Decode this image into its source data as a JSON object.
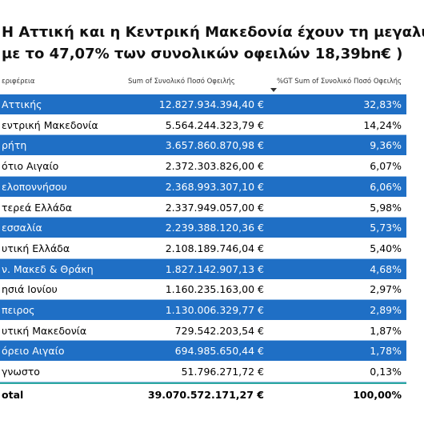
{
  "header": {
    "title_lines": [
      "Η Αττική και η Κεντρική Μακεδονία  έχουν τη μεγαλύτε",
      "με το 47,07% των συνολικών οφειλών 18,39bn€   )"
    ]
  },
  "table": {
    "columns": [
      "εριφέρεια",
      "Sum of Συνολικό Ποσό Οφειλής",
      "%GT Sum of Συνολικό Ποσό Οφειλής"
    ],
    "rows": [
      [
        "Αττικής",
        "12.827.934.394,40 €",
        "32,83%"
      ],
      [
        "εντρική Μακεδονία",
        "5.564.244.323,79 €",
        "14,24%"
      ],
      [
        "ρήτη",
        "3.657.860.870,98 €",
        "9,36%"
      ],
      [
        "ότιο Αιγαίο",
        "2.372.303.826,00 €",
        "6,07%"
      ],
      [
        "ελοποννήσου",
        "2.368.993.307,10 €",
        "6,06%"
      ],
      [
        "τερεά Ελλάδα",
        "2.337.949.057,00 €",
        "5,98%"
      ],
      [
        "εσσαλία",
        "2.239.388.120,36 €",
        "5,73%"
      ],
      [
        "υτική Ελλάδα",
        "2.108.189.746,04 €",
        "5,40%"
      ],
      [
        "ν. Μακεδ & Θράκη",
        "1.827.142.907,13 €",
        "4,68%"
      ],
      [
        "ησιά Ιονίου",
        "1.160.235.163,00 €",
        "2,97%"
      ],
      [
        "πειρος",
        "1.130.006.329,77 €",
        "2,89%"
      ],
      [
        "υτική Μακεδονία",
        "729.542.203,54 €",
        "1,87%"
      ],
      [
        "όρειο Αιγαίο",
        "694.985.650,44 €",
        "1,78%"
      ],
      [
        "γνωστο",
        "51.796.271,72 €",
        "0,13%"
      ]
    ],
    "total": [
      "otal",
      "39.070.572.171,27 €",
      "100,00%"
    ]
  }
}
